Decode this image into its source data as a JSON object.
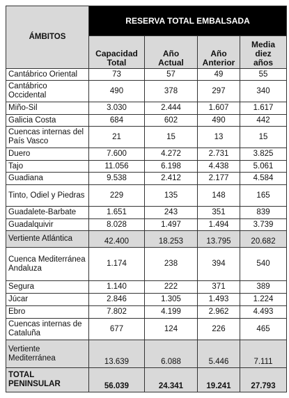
{
  "table": {
    "title": "RESERVA TOTAL EMBALSADA",
    "row_header": "ÁMBITOS",
    "columns": [
      "Capacidad Total",
      "Año Actual",
      "Año Anterior",
      "Media diez años"
    ],
    "rows": [
      [
        "Cantábrico Oriental",
        "73",
        "57",
        "49",
        "55"
      ],
      [
        "Cantábrico Occidental",
        "490",
        "378",
        "297",
        "340"
      ],
      [
        "Miño-Sil",
        "3.030",
        "2.444",
        "1.607",
        "1.617"
      ],
      [
        "Galicia Costa",
        "684",
        "602",
        "490",
        "442"
      ],
      [
        "Cuencas internas del País Vasco",
        "21",
        "15",
        "13",
        "15"
      ],
      [
        "Duero",
        "7.600",
        "4.272",
        "2.731",
        "3.825"
      ],
      [
        "Tajo",
        "11.056",
        "6.198",
        "4.438",
        "5.061"
      ],
      [
        "Guadiana",
        "9.538",
        "2.412",
        "2.177",
        "4.584"
      ],
      [
        "Tinto, Odiel y Piedras",
        "229",
        "135",
        "148",
        "165"
      ],
      [
        "Guadalete-Barbate",
        "1.651",
        "243",
        "351",
        "839"
      ],
      [
        "Guadalquivir",
        "8.028",
        "1.497",
        "1.494",
        "3.739"
      ],
      [
        "Vertiente Atlántica",
        "42.400",
        "18.253",
        "13.795",
        "20.682"
      ],
      [
        "Cuenca Mediterránea Andaluza",
        "1.174",
        "238",
        "394",
        "540"
      ],
      [
        "Segura",
        "1.140",
        "222",
        "371",
        "389"
      ],
      [
        "Júcar",
        "2.846",
        "1.305",
        "1.493",
        "1.224"
      ],
      [
        "Ebro",
        "7.802",
        "4.199",
        "2.962",
        "4.493"
      ],
      [
        "Cuencas internas de Cataluña",
        "677",
        "124",
        "226",
        "465"
      ],
      [
        "Vertiente Mediterránea",
        "13.639",
        "6.088",
        "5.446",
        "7.111"
      ],
      [
        "TOTAL PENINSULAR",
        "56.039",
        "24.341",
        "19.241",
        "27.793"
      ]
    ]
  }
}
